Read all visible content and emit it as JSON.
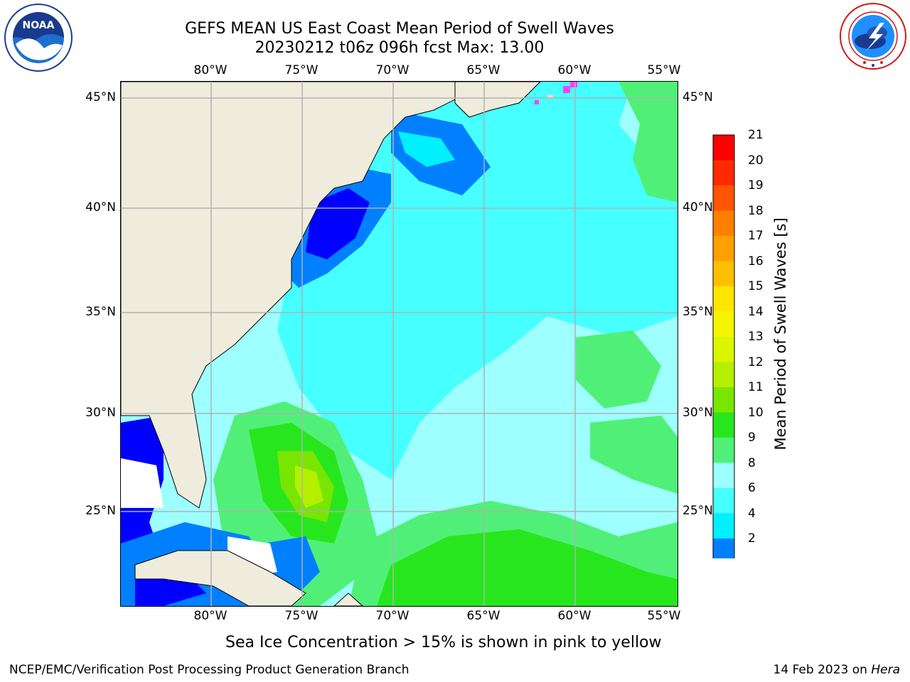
{
  "header": {
    "title_line1": "GEFS MEAN US East Coast Mean Period of Swell Waves",
    "title_line2": "20230212 t06z 096h fcst   Max: 13.00"
  },
  "logos": {
    "left": "NOAA",
    "left_ring_text": "NATIONAL OCEANIC AND ATMOSPHERIC ADMINISTRATION • U.S. DEPARTMENT OF COMMERCE",
    "right_ring_text": "NATIONAL WEATHER SERVICE"
  },
  "map": {
    "lon_ticks": [
      "80°W",
      "75°W",
      "70°W",
      "65°W",
      "60°W",
      "55°W"
    ],
    "lat_ticks": [
      "45°N",
      "40°N",
      "35°N",
      "30°N",
      "25°N"
    ],
    "land_color": "#efecdd",
    "grid_color": "#b0b0b0"
  },
  "colorbar": {
    "label": "Mean Period of Swell Waves [s]",
    "ticks": [
      "21",
      "20",
      "19",
      "18",
      "17",
      "16",
      "15",
      "14",
      "13",
      "12",
      "11",
      "10",
      "9",
      "8",
      "6",
      "4",
      "2"
    ],
    "colors": [
      "#ff0000",
      "#ff2a00",
      "#ff5500",
      "#ff7f00",
      "#ff9f00",
      "#ffbf00",
      "#ffe600",
      "#f5f500",
      "#dcf500",
      "#b4f000",
      "#78e600",
      "#28e61e",
      "#50f078",
      "#9effff",
      "#46ffff",
      "#00f0ff",
      "#0080ff"
    ],
    "extend_color": "#0000ff"
  },
  "notes": {
    "sea_ice": "Sea Ice Concentration > 15% is shown in pink to yellow",
    "credit": "NCEP/EMC/Verification Post Processing Product Generation Branch",
    "date": "14 Feb 2023 on ",
    "machine": "Hera"
  }
}
